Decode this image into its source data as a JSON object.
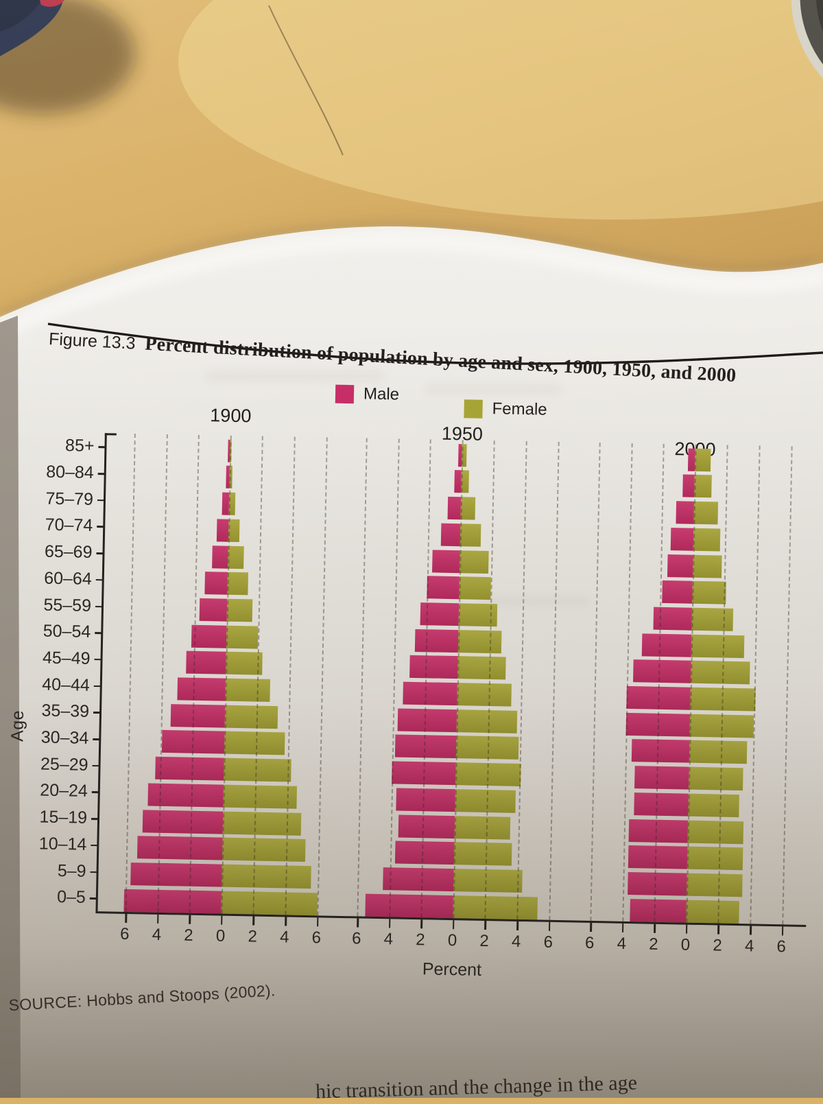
{
  "page": {
    "figure_label": "Figure 13.3",
    "figure_title": "Percent distribution of population by age and sex, 1900, 1950, and 2000",
    "source": "SOURCE: Hobbs and Stoops (2002).",
    "bottom_text_fragment": "hic transition and the change in the age"
  },
  "legend": {
    "male_label": "Male",
    "female_label": "Female"
  },
  "colors": {
    "male": "#c92e68",
    "female": "#a9a636",
    "page": "#e9e6e1",
    "desk": "#d9b267",
    "axis": "#242220"
  },
  "chart_data": {
    "type": "bar",
    "subtype": "population-pyramid",
    "title": "Percent distribution of population by age and sex, 1900, 1950, and 2000",
    "xlabel": "Percent",
    "ylabel": "Age",
    "xlim_per_side": 6,
    "grid": "dashed-vertical",
    "legend_position": "top",
    "x_tick_values": [
      -6,
      -4,
      -2,
      0,
      2,
      4,
      6
    ],
    "x_tick_labels": [
      "6",
      "4",
      "2",
      "0",
      "2",
      "4",
      "6"
    ],
    "age_groups": [
      "85+",
      "80–84",
      "75–79",
      "70–74",
      "65–69",
      "60–64",
      "55–59",
      "50–54",
      "45–49",
      "40–44",
      "35–39",
      "30–34",
      "25–29",
      "20–24",
      "15–19",
      "10–14",
      "5–9",
      "0–5"
    ],
    "pyramids": [
      {
        "year": "1900",
        "male": [
          0.1,
          0.2,
          0.4,
          0.7,
          1.0,
          1.4,
          1.7,
          2.2,
          2.5,
          3.0,
          3.4,
          3.9,
          4.3,
          4.7,
          5.0,
          5.3,
          5.7,
          6.1
        ],
        "female": [
          0.1,
          0.2,
          0.4,
          0.7,
          1.0,
          1.3,
          1.6,
          2.0,
          2.3,
          2.8,
          3.3,
          3.8,
          4.2,
          4.6,
          4.9,
          5.2,
          5.6,
          6.0
        ]
      },
      {
        "year": "1950",
        "male": [
          0.2,
          0.4,
          0.8,
          1.2,
          1.7,
          2.0,
          2.4,
          2.7,
          3.0,
          3.4,
          3.7,
          3.8,
          4.0,
          3.7,
          3.5,
          3.7,
          4.4,
          5.5
        ],
        "female": [
          0.3,
          0.5,
          0.9,
          1.3,
          1.8,
          2.0,
          2.4,
          2.7,
          3.0,
          3.4,
          3.8,
          3.9,
          4.1,
          3.8,
          3.5,
          3.6,
          4.3,
          5.3
        ]
      },
      {
        "year": "2000",
        "male": [
          0.4,
          0.7,
          1.1,
          1.4,
          1.6,
          1.9,
          2.4,
          3.1,
          3.6,
          4.0,
          4.0,
          3.6,
          3.4,
          3.4,
          3.7,
          3.7,
          3.7,
          3.5
        ],
        "female": [
          1.0,
          1.1,
          1.5,
          1.7,
          1.8,
          2.1,
          2.6,
          3.3,
          3.7,
          4.1,
          4.0,
          3.6,
          3.4,
          3.2,
          3.5,
          3.5,
          3.5,
          3.3
        ]
      }
    ]
  }
}
